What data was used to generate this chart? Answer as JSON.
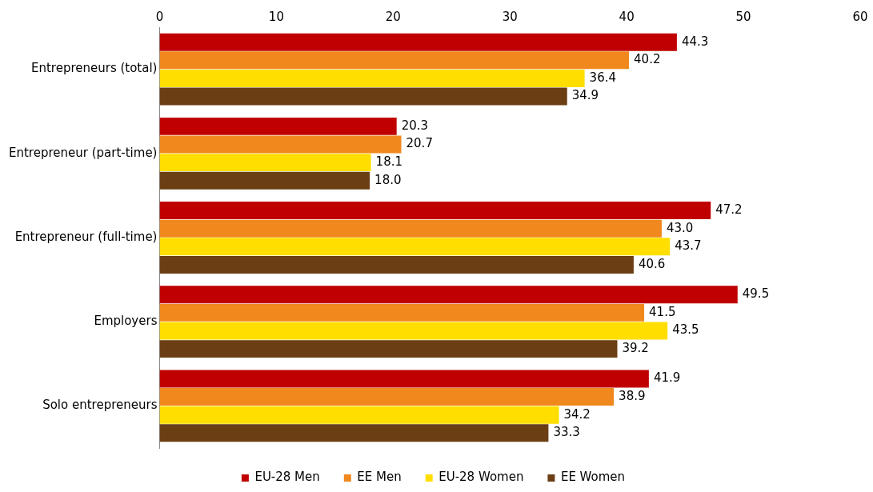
{
  "chart_data": {
    "type": "bar",
    "orientation": "horizontal",
    "categories": [
      "Entrepreneurs (total)",
      "Entrepreneur (part-time)",
      "Entrepreneur (full-time)",
      "Employers",
      "Solo entrepreneurs"
    ],
    "series": [
      {
        "name": "EU-28 Men",
        "color": "#c00000",
        "values": [
          44.3,
          20.3,
          47.2,
          49.5,
          41.9
        ],
        "value_labels": [
          "44.3",
          "20.3",
          "47.2",
          "49.5",
          "41.9"
        ]
      },
      {
        "name": "EE Men",
        "color": "#f0881e",
        "values": [
          40.2,
          20.7,
          43.0,
          41.5,
          38.9
        ],
        "value_labels": [
          "40.2",
          "20.7",
          "43.0",
          "41.5",
          "38.9"
        ]
      },
      {
        "name": "EU-28 Women",
        "color": "#ffde00",
        "values": [
          36.4,
          18.1,
          43.7,
          43.5,
          34.2
        ],
        "value_labels": [
          "36.4",
          "18.1",
          "43.7",
          "43.5",
          "34.2"
        ]
      },
      {
        "name": "EE Women",
        "color": "#6b3e14",
        "values": [
          34.9,
          18.0,
          40.6,
          39.2,
          33.3
        ],
        "value_labels": [
          "34.9",
          "18.0",
          "40.6",
          "39.2",
          "33.3"
        ]
      }
    ],
    "xlim": [
      0,
      60
    ],
    "xticks": [
      0,
      10,
      20,
      30,
      40,
      50,
      60
    ],
    "grid": false,
    "legend": "bottom"
  }
}
